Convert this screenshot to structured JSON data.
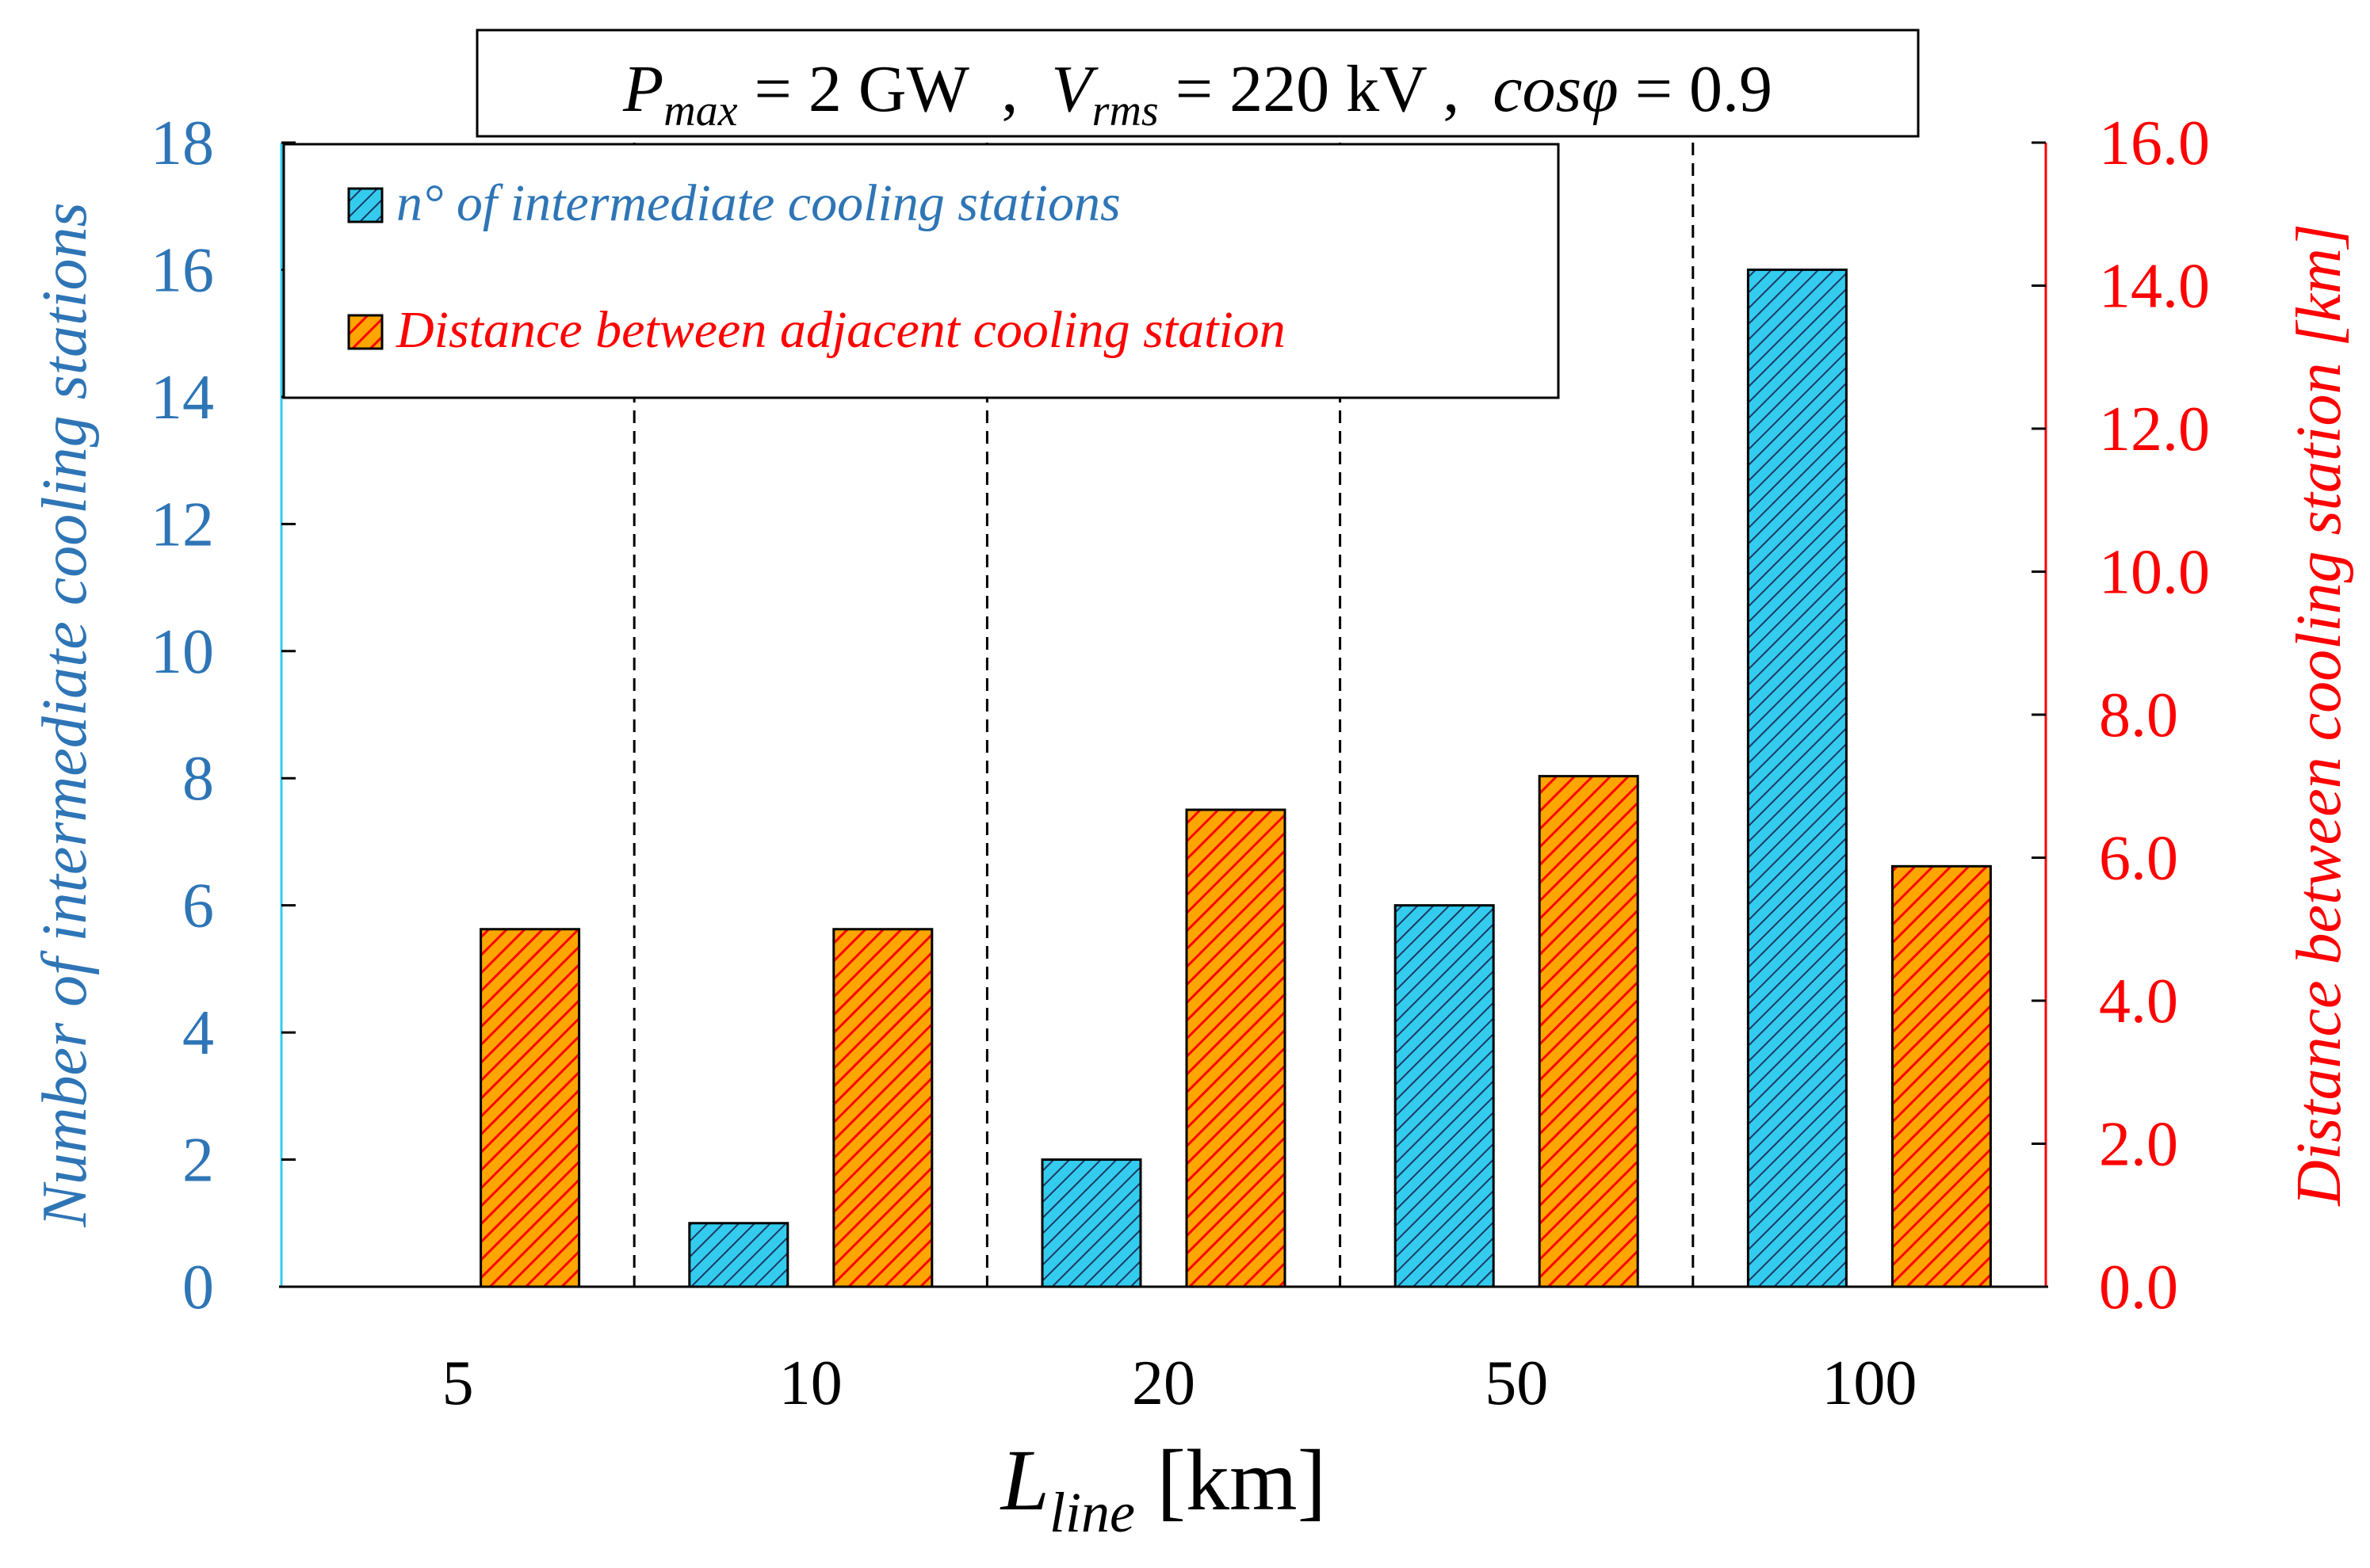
{
  "chart_data": {
    "type": "bar",
    "title": {
      "p": "P",
      "p_sub": "max",
      "p_val": " = 2 GW  ,  ",
      "v": "V",
      "v_sub": "rms",
      "v_val": " = 220 kV ,  ",
      "cos": "cosφ",
      "cos_val": " = 0.9"
    },
    "xlabel": {
      "main": "L",
      "sub": "line",
      "unit": " [km]"
    },
    "ylabel_left": "Number of intermediate cooling stations",
    "ylabel_right": "Distance between cooling station [km]",
    "categories": [
      "5",
      "10",
      "20",
      "50",
      "100"
    ],
    "ylim_left": [
      0,
      18
    ],
    "yticks_left": [
      "0",
      "2",
      "4",
      "6",
      "8",
      "10",
      "12",
      "14",
      "16",
      "18"
    ],
    "ylim_right": [
      0,
      16
    ],
    "yticks_right": [
      "0.0",
      "2.0",
      "4.0",
      "6.0",
      "8.0",
      "10.0",
      "12.0",
      "14.0",
      "16.0"
    ],
    "series": [
      {
        "name": "n° of intermediate cooling stations",
        "axis": "left",
        "values": [
          0,
          1,
          2,
          6,
          16
        ]
      },
      {
        "name": "Distance between adjacent cooling station",
        "axis": "right",
        "values": [
          5.0,
          5.0,
          6.67,
          7.14,
          5.88
        ]
      }
    ],
    "legend_position": "top-left",
    "colors": {
      "left_axis": "#2E75B6",
      "right_axis": "#FF0000",
      "series_1": "#33CCEE",
      "series_2": "#FFA500",
      "series_2_hatch": "#FF0000"
    }
  }
}
